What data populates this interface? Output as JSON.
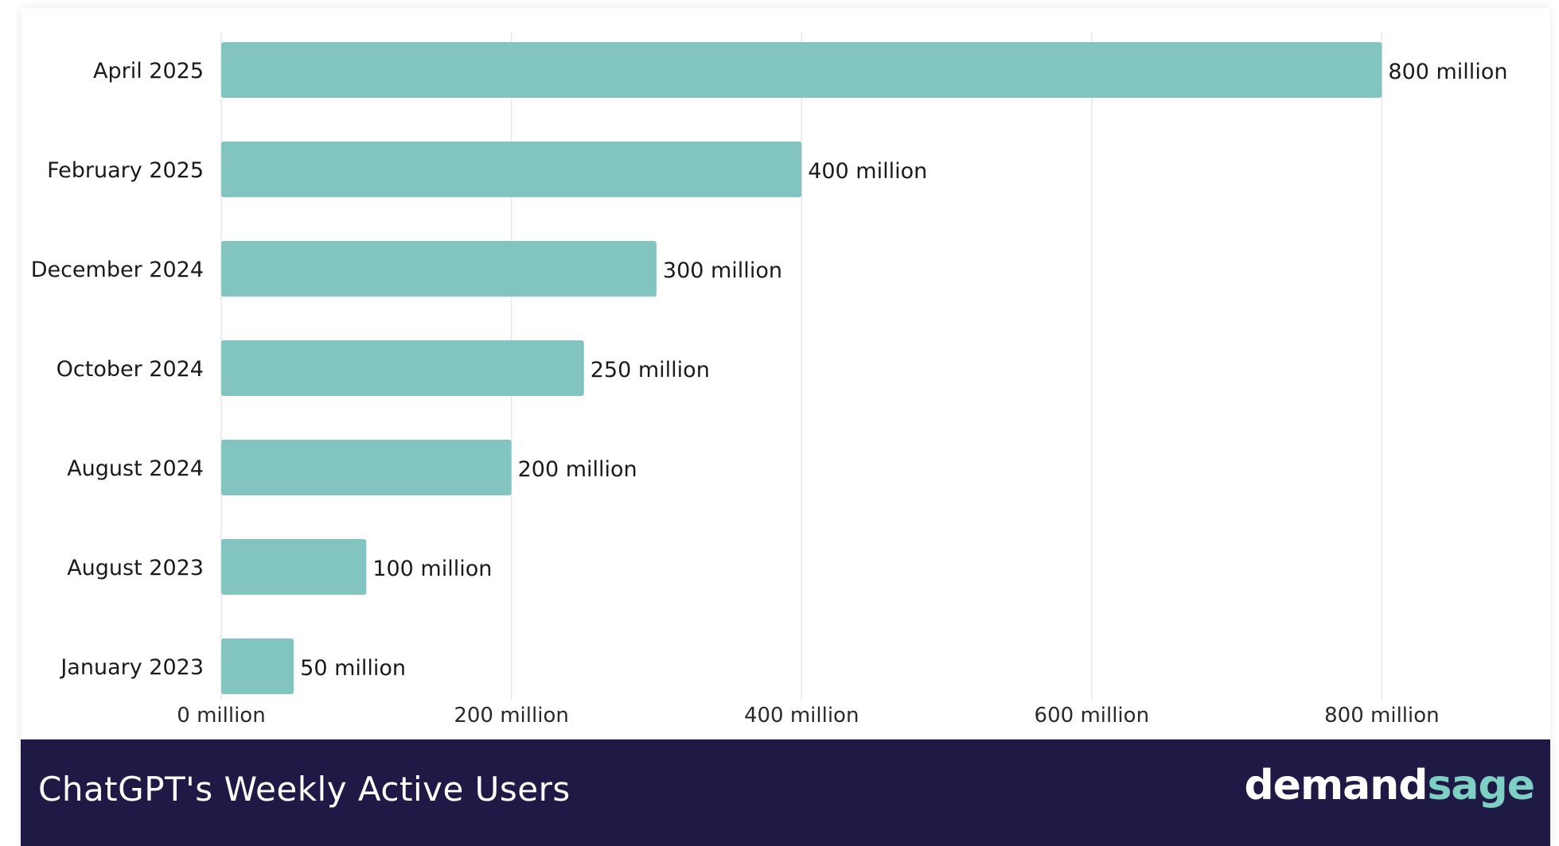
{
  "chart_data": {
    "type": "bar",
    "orientation": "horizontal",
    "title": "ChatGPT's Weekly Active Users",
    "categories": [
      "April 2025",
      "February 2025",
      "December 2024",
      "October 2024",
      "August 2024",
      "August 2023",
      "January 2023"
    ],
    "values": [
      800,
      400,
      300,
      250,
      200,
      100,
      50
    ],
    "value_labels": [
      "800 million",
      "400 million",
      "300 million",
      "250 million",
      "200 million",
      "100 million",
      "50 million"
    ],
    "units": "million",
    "xlim": [
      0,
      920
    ],
    "x_ticks": [
      0,
      200,
      400,
      600,
      800
    ],
    "x_tick_labels": [
      "0 million",
      "200 million",
      "400 million",
      "600 million",
      "800 million"
    ],
    "grid": "vertical",
    "bar_color": "#82c4c0"
  },
  "footer": {
    "title": "ChatGPT's Weekly Active Users",
    "logo_part1": "demand",
    "logo_part2": "sage",
    "background_color": "#1e1a45",
    "logo_accent_color": "#7fd0c4"
  }
}
